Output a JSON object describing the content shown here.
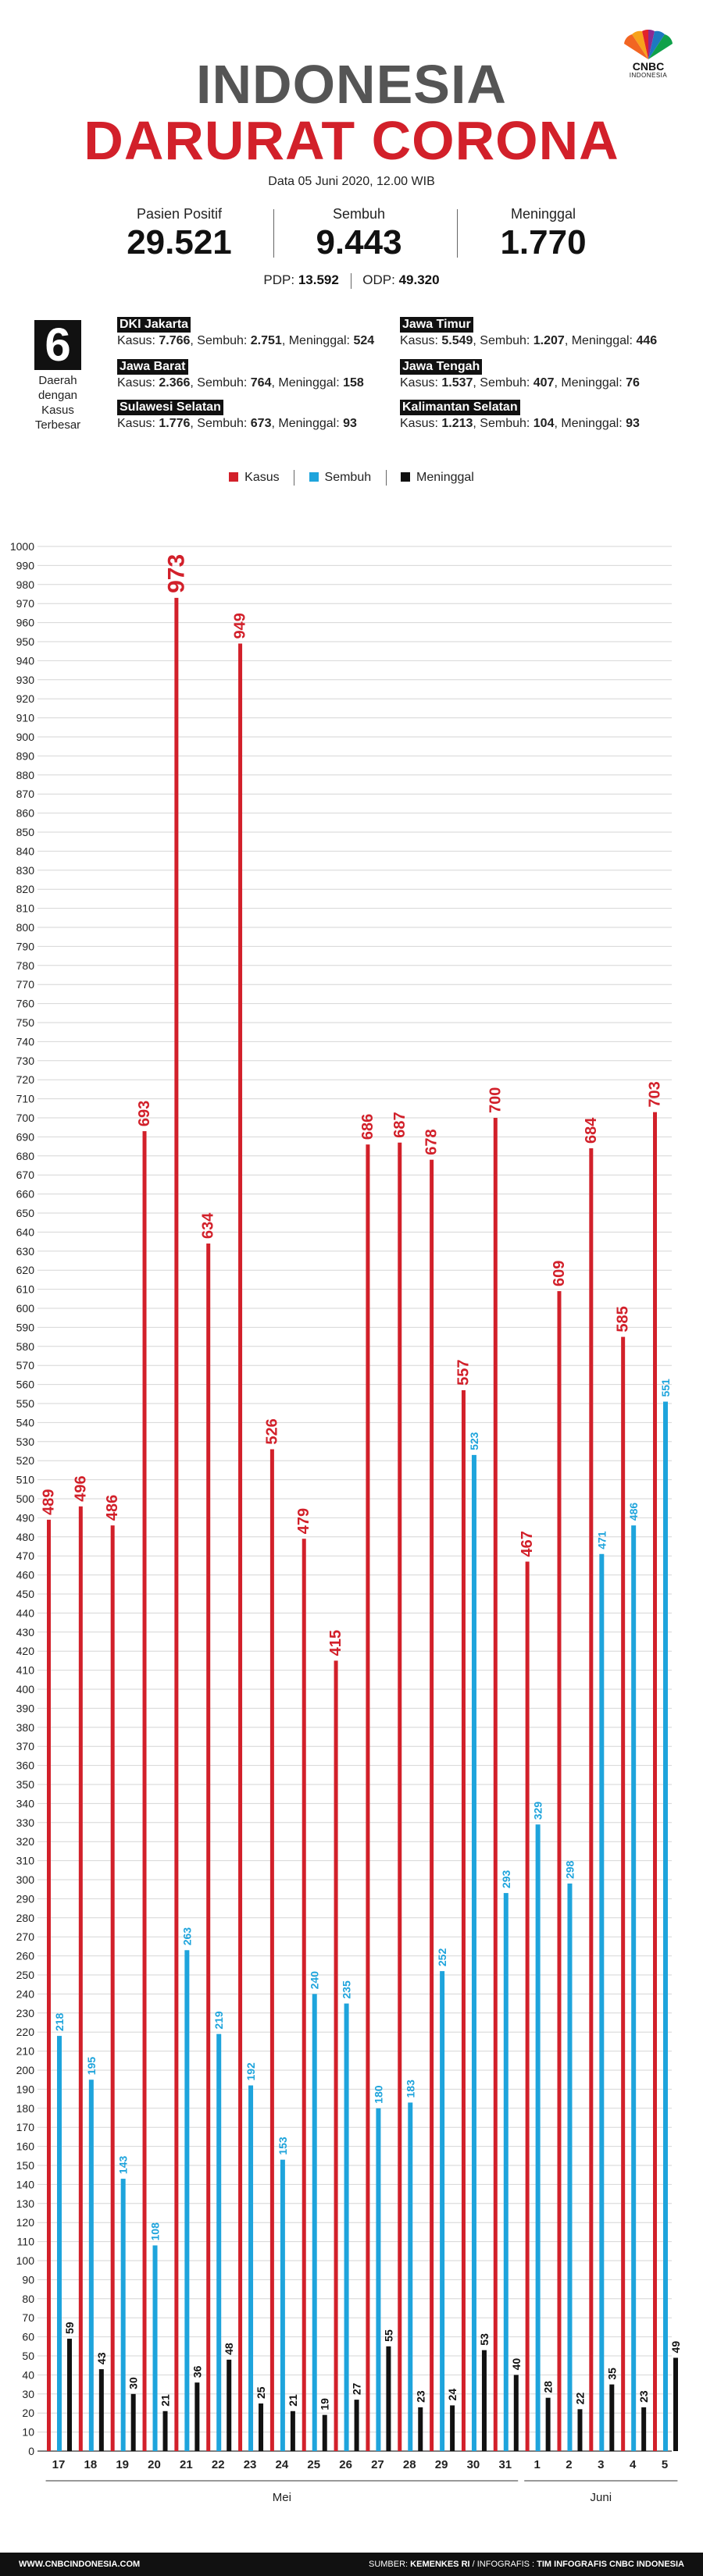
{
  "brand": {
    "logo_text": "CNBC",
    "logo_sub": "INDONESIA",
    "colors": {
      "kasus": "#d2202a",
      "sembuh": "#1ea4dc",
      "meninggal": "#111111",
      "title_gray": "#555555"
    }
  },
  "header": {
    "title_line1": "INDONESIA",
    "title_line2": "DARURAT CORONA",
    "date": "Data 05 Juni 2020, 12.00 WIB"
  },
  "stats": [
    {
      "label": "Pasien Positif",
      "value": "29.521"
    },
    {
      "label": "Sembuh",
      "value": "9.443"
    },
    {
      "label": "Meninggal",
      "value": "1.770"
    }
  ],
  "pdp_odp": {
    "pdp_label": "PDP:",
    "pdp_value": "13.592",
    "odp_label": "ODP:",
    "odp_value": "49.320"
  },
  "regions_block": {
    "number": "6",
    "label_line1": "Daerah",
    "label_line2": "dengan",
    "label_line3": "Kasus",
    "label_line4": "Terbesar",
    "kasus_label": "Kasus:",
    "sembuh_label": ", Sembuh:",
    "meninggal_label": ", Meninggal:",
    "regions": [
      {
        "name": "DKI Jakarta",
        "kasus": "7.766",
        "sembuh": "2.751",
        "meninggal": "524"
      },
      {
        "name": "Jawa Timur",
        "kasus": "5.549",
        "sembuh": "1.207",
        "meninggal": "446"
      },
      {
        "name": "Jawa Barat",
        "kasus": "2.366",
        "sembuh": "764",
        "meninggal": "158"
      },
      {
        "name": "Jawa Tengah",
        "kasus": "1.537",
        "sembuh": "407",
        "meninggal": "76"
      },
      {
        "name": "Sulawesi Selatan",
        "kasus": "1.776",
        "sembuh": "673",
        "meninggal": "93"
      },
      {
        "name": "Kalimantan Selatan",
        "kasus": "1.213",
        "sembuh": "104",
        "meninggal": "93"
      }
    ]
  },
  "chart_data": {
    "type": "bar",
    "title": "",
    "xlabel": "",
    "ylabel": "",
    "ylim": [
      0,
      1000
    ],
    "ytick_step": 10,
    "grid": true,
    "legend": "top-center",
    "categories": [
      "17",
      "18",
      "19",
      "20",
      "21",
      "22",
      "23",
      "24",
      "25",
      "26",
      "27",
      "28",
      "29",
      "30",
      "31",
      "1",
      "2",
      "3",
      "4",
      "5"
    ],
    "month_groups": [
      {
        "label": "Mei",
        "count": 15
      },
      {
        "label": "Juni",
        "count": 5
      }
    ],
    "series": [
      {
        "name": "Kasus",
        "color": "#d2202a",
        "values": [
          489,
          496,
          486,
          693,
          973,
          634,
          949,
          526,
          479,
          415,
          686,
          687,
          678,
          557,
          700,
          467,
          609,
          684,
          585,
          703
        ]
      },
      {
        "name": "Sembuh",
        "color": "#1ea4dc",
        "values": [
          218,
          195,
          143,
          108,
          263,
          219,
          192,
          153,
          240,
          235,
          180,
          183,
          252,
          523,
          293,
          329,
          298,
          471,
          486,
          551
        ]
      },
      {
        "name": "Meninggal",
        "color": "#111111",
        "values": [
          59,
          43,
          30,
          21,
          36,
          48,
          25,
          21,
          19,
          27,
          55,
          23,
          24,
          53,
          40,
          28,
          22,
          35,
          23,
          49
        ]
      }
    ]
  },
  "footer": {
    "website": "WWW.CNBCINDONESIA.COM",
    "source_label": "SUMBER:",
    "source_value": "KEMENKES RI",
    "credit_label": "/ INFOGRAFIS :",
    "credit_value": "TIM INFOGRAFIS CNBC INDONESIA"
  }
}
